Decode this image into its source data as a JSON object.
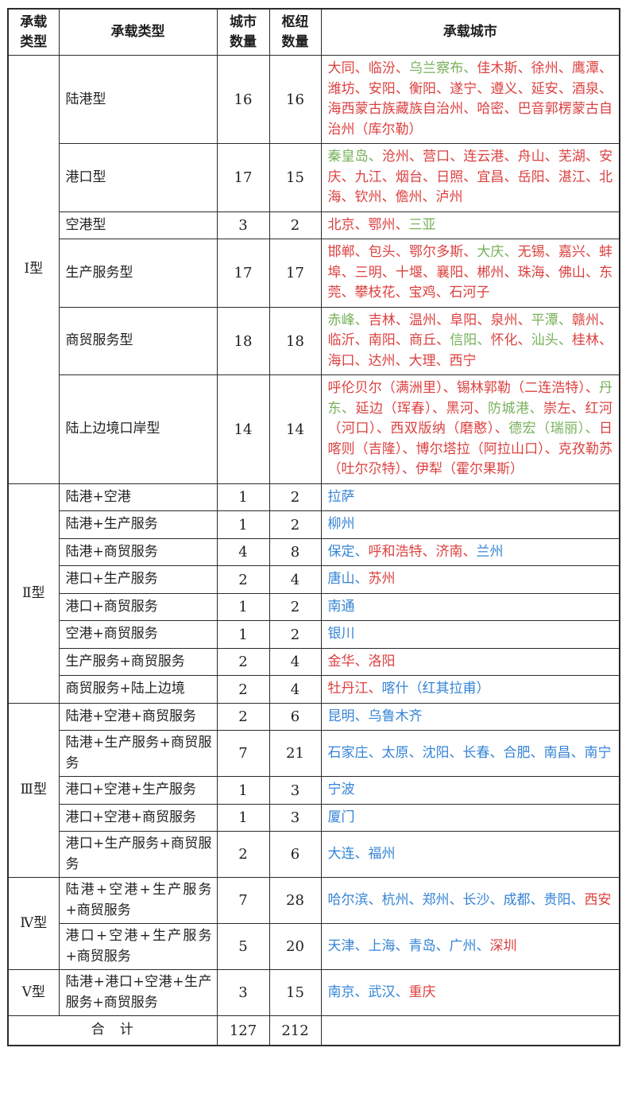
{
  "colors": {
    "red": "#dc4140",
    "green": "#77b05a",
    "blue": "#3584d6",
    "black": "#1f1f1f"
  },
  "table": {
    "headers": [
      "承载类型",
      "承载类型",
      "城市数量",
      "枢纽数量",
      "承载城市"
    ],
    "groups": [
      {
        "label": "Ⅰ型",
        "rows": [
          {
            "category": "陆港型",
            "city_count": "16",
            "hub_count": "16",
            "cities": [
              {
                "name": "大同",
                "color": "red"
              },
              {
                "name": "临汾",
                "color": "red"
              },
              {
                "name": "乌兰察布",
                "color": "green"
              },
              {
                "name": "佳木斯",
                "color": "red"
              },
              {
                "name": "徐州",
                "color": "red"
              },
              {
                "name": "鹰潭",
                "color": "red"
              },
              {
                "name": "潍坊",
                "color": "red"
              },
              {
                "name": "安阳",
                "color": "red"
              },
              {
                "name": "衡阳",
                "color": "red"
              },
              {
                "name": "遂宁",
                "color": "red"
              },
              {
                "name": "遵义",
                "color": "red"
              },
              {
                "name": "延安",
                "color": "red"
              },
              {
                "name": "酒泉",
                "color": "red"
              },
              {
                "name": "海西蒙古族藏族自治州",
                "color": "red"
              },
              {
                "name": "哈密",
                "color": "red"
              },
              {
                "name": "巴音郭楞蒙古自治州（库尔勒）",
                "color": "red"
              }
            ]
          },
          {
            "category": "港口型",
            "city_count": "17",
            "hub_count": "15",
            "cities": [
              {
                "name": "秦皇岛",
                "color": "green"
              },
              {
                "name": "沧州",
                "color": "red"
              },
              {
                "name": "营口",
                "color": "red"
              },
              {
                "name": "连云港",
                "color": "red"
              },
              {
                "name": "舟山",
                "color": "red"
              },
              {
                "name": "芜湖",
                "color": "red"
              },
              {
                "name": "安庆",
                "color": "red"
              },
              {
                "name": "九江",
                "color": "red"
              },
              {
                "name": "烟台",
                "color": "red"
              },
              {
                "name": "日照",
                "color": "red"
              },
              {
                "name": "宜昌",
                "color": "red"
              },
              {
                "name": "岳阳",
                "color": "red"
              },
              {
                "name": "湛江",
                "color": "red"
              },
              {
                "name": "北海",
                "color": "red"
              },
              {
                "name": "钦州",
                "color": "red"
              },
              {
                "name": "儋州",
                "color": "red"
              },
              {
                "name": "泸州",
                "color": "red"
              }
            ]
          },
          {
            "category": "空港型",
            "city_count": "3",
            "hub_count": "2",
            "cities": [
              {
                "name": "北京",
                "color": "red"
              },
              {
                "name": "鄂州",
                "color": "red"
              },
              {
                "name": "三亚",
                "color": "green"
              }
            ]
          },
          {
            "category": "生产服务型",
            "city_count": "17",
            "hub_count": "17",
            "cities": [
              {
                "name": "邯郸",
                "color": "red"
              },
              {
                "name": "包头",
                "color": "red"
              },
              {
                "name": "鄂尔多斯",
                "color": "red"
              },
              {
                "name": "大庆",
                "color": "green"
              },
              {
                "name": "无锡",
                "color": "red"
              },
              {
                "name": "嘉兴",
                "color": "red"
              },
              {
                "name": "蚌埠",
                "color": "red"
              },
              {
                "name": "三明",
                "color": "red"
              },
              {
                "name": "十堰",
                "color": "red"
              },
              {
                "name": "襄阳",
                "color": "red"
              },
              {
                "name": "郴州",
                "color": "red"
              },
              {
                "name": "珠海",
                "color": "red"
              },
              {
                "name": "佛山",
                "color": "red"
              },
              {
                "name": "东莞",
                "color": "red"
              },
              {
                "name": "攀枝花",
                "color": "red"
              },
              {
                "name": "宝鸡",
                "color": "red"
              },
              {
                "name": "石河子",
                "color": "red"
              }
            ]
          },
          {
            "category": "商贸服务型",
            "city_count": "18",
            "hub_count": "18",
            "cities": [
              {
                "name": "赤峰",
                "color": "green"
              },
              {
                "name": "吉林",
                "color": "red"
              },
              {
                "name": "温州",
                "color": "red"
              },
              {
                "name": "阜阳",
                "color": "red"
              },
              {
                "name": "泉州",
                "color": "red"
              },
              {
                "name": "平潭",
                "color": "green"
              },
              {
                "name": "赣州",
                "color": "red"
              },
              {
                "name": "临沂",
                "color": "red"
              },
              {
                "name": "南阳",
                "color": "red"
              },
              {
                "name": "商丘",
                "color": "red"
              },
              {
                "name": "信阳",
                "color": "green"
              },
              {
                "name": "怀化",
                "color": "red"
              },
              {
                "name": "汕头",
                "color": "green"
              },
              {
                "name": "桂林",
                "color": "red"
              },
              {
                "name": "海口",
                "color": "red"
              },
              {
                "name": "达州",
                "color": "red"
              },
              {
                "name": "大理",
                "color": "red"
              },
              {
                "name": "西宁",
                "color": "red"
              }
            ]
          },
          {
            "category": "陆上边境口岸型",
            "city_count": "14",
            "hub_count": "14",
            "cities": [
              {
                "name": "呼伦贝尔（满洲里）",
                "color": "red"
              },
              {
                "name": "锡林郭勒（二连浩特）",
                "color": "red"
              },
              {
                "name": "丹东",
                "color": "green"
              },
              {
                "name": "延边（珲春）",
                "color": "red"
              },
              {
                "name": "黑河",
                "color": "red"
              },
              {
                "name": "防城港",
                "color": "green"
              },
              {
                "name": "崇左",
                "color": "red"
              },
              {
                "name": "红河（河口）",
                "color": "red"
              },
              {
                "name": "西双版纳（磨憨）",
                "color": "red"
              },
              {
                "name": "德宏（瑞丽）",
                "color": "green"
              },
              {
                "name": "日喀则（吉隆）",
                "color": "red"
              },
              {
                "name": "博尔塔拉（阿拉山口）",
                "color": "red"
              },
              {
                "name": "克孜勒苏（吐尔尕特）",
                "color": "red"
              },
              {
                "name": "伊犁（霍尔果斯）",
                "color": "red"
              }
            ]
          }
        ]
      },
      {
        "label": "Ⅱ型",
        "rows": [
          {
            "category": "陆港+空港",
            "city_count": "1",
            "hub_count": "2",
            "cities": [
              {
                "name": "拉萨",
                "color": "blue"
              }
            ]
          },
          {
            "category": "陆港+生产服务",
            "city_count": "1",
            "hub_count": "2",
            "cities": [
              {
                "name": "柳州",
                "color": "blue"
              }
            ]
          },
          {
            "category": "陆港+商贸服务",
            "city_count": "4",
            "hub_count": "8",
            "cities": [
              {
                "name": "保定",
                "color": "blue"
              },
              {
                "name": "呼和浩特",
                "color": "red"
              },
              {
                "name": "济南",
                "color": "red"
              },
              {
                "name": "兰州",
                "color": "blue"
              }
            ]
          },
          {
            "category": "港口+生产服务",
            "city_count": "2",
            "hub_count": "4",
            "cities": [
              {
                "name": "唐山",
                "color": "blue"
              },
              {
                "name": "苏州",
                "color": "red"
              }
            ]
          },
          {
            "category": "港口+商贸服务",
            "city_count": "1",
            "hub_count": "2",
            "cities": [
              {
                "name": "南通",
                "color": "blue"
              }
            ]
          },
          {
            "category": "空港+商贸服务",
            "city_count": "1",
            "hub_count": "2",
            "cities": [
              {
                "name": "银川",
                "color": "blue"
              }
            ]
          },
          {
            "category": "生产服务+商贸服务",
            "city_count": "2",
            "hub_count": "4",
            "cities": [
              {
                "name": "金华",
                "color": "red"
              },
              {
                "name": "洛阳",
                "color": "red"
              }
            ]
          },
          {
            "category": "商贸服务+陆上边境",
            "city_count": "2",
            "hub_count": "4",
            "cities": [
              {
                "name": "牡丹江",
                "color": "red"
              },
              {
                "name": "喀什（红其拉甫）",
                "color": "blue"
              }
            ]
          }
        ]
      },
      {
        "label": "Ⅲ型",
        "rows": [
          {
            "category": "陆港+空港+商贸服务",
            "city_count": "2",
            "hub_count": "6",
            "cities": [
              {
                "name": "昆明",
                "color": "blue"
              },
              {
                "name": "乌鲁木齐",
                "color": "blue"
              }
            ]
          },
          {
            "category": "陆港+生产服务+商贸服务",
            "city_count": "7",
            "hub_count": "21",
            "cities": [
              {
                "name": "石家庄",
                "color": "blue"
              },
              {
                "name": "太原",
                "color": "blue"
              },
              {
                "name": "沈阳",
                "color": "blue"
              },
              {
                "name": "长春",
                "color": "blue"
              },
              {
                "name": "合肥",
                "color": "blue"
              },
              {
                "name": "南昌",
                "color": "blue"
              },
              {
                "name": "南宁",
                "color": "blue"
              }
            ]
          },
          {
            "category": "港口+空港+生产服务",
            "city_count": "1",
            "hub_count": "3",
            "cities": [
              {
                "name": "宁波",
                "color": "blue"
              }
            ]
          },
          {
            "category": "港口+空港+商贸服务",
            "city_count": "1",
            "hub_count": "3",
            "cities": [
              {
                "name": "厦门",
                "color": "blue"
              }
            ]
          },
          {
            "category": "港口+生产服务+商贸服务",
            "city_count": "2",
            "hub_count": "6",
            "cities": [
              {
                "name": "大连",
                "color": "blue"
              },
              {
                "name": "福州",
                "color": "blue"
              }
            ]
          }
        ]
      },
      {
        "label": "Ⅳ型",
        "rows": [
          {
            "category": "陆港+空港+生产服务+商贸服务",
            "city_count": "7",
            "hub_count": "28",
            "cities": [
              {
                "name": "哈尔滨",
                "color": "blue"
              },
              {
                "name": "杭州",
                "color": "blue"
              },
              {
                "name": "郑州",
                "color": "blue"
              },
              {
                "name": "长沙",
                "color": "blue"
              },
              {
                "name": "成都",
                "color": "blue"
              },
              {
                "name": "贵阳",
                "color": "blue"
              },
              {
                "name": "西安",
                "color": "red"
              }
            ]
          },
          {
            "category": "港口+空港+生产服务+商贸服务",
            "city_count": "5",
            "hub_count": "20",
            "cities": [
              {
                "name": "天津",
                "color": "blue"
              },
              {
                "name": "上海",
                "color": "blue"
              },
              {
                "name": "青岛",
                "color": "blue"
              },
              {
                "name": "广州",
                "color": "blue"
              },
              {
                "name": "深圳",
                "color": "red"
              }
            ]
          }
        ]
      },
      {
        "label": "Ⅴ型",
        "rows": [
          {
            "category": "陆港+港口+空港+生产服务+商贸服务",
            "city_count": "3",
            "hub_count": "15",
            "cities": [
              {
                "name": "南京",
                "color": "blue"
              },
              {
                "name": "武汉",
                "color": "blue"
              },
              {
                "name": "重庆",
                "color": "red"
              }
            ]
          }
        ]
      }
    ],
    "footer": {
      "label": "合　计",
      "city_total": "127",
      "hub_total": "212",
      "cities": ""
    }
  }
}
